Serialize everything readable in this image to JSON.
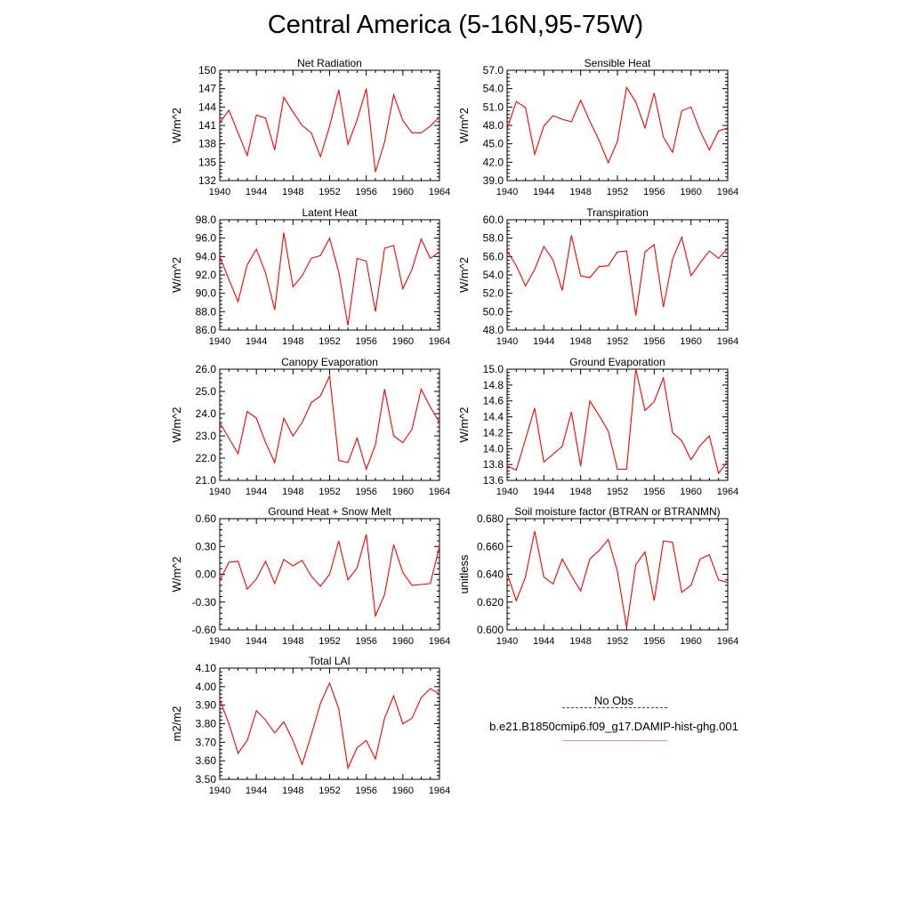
{
  "title": "Central America (5-16N,95-75W)",
  "legend": {
    "obs_label": "No Obs",
    "model_label": "b.e21.B1850cmip6.f09_g17.DAMIP-hist-ghg.001",
    "obs_color": "#3333cc",
    "model_color": "#ff0000"
  },
  "chart_data": [
    {
      "type": "line",
      "title": "Net Radiation",
      "ylabel": "W/m^2",
      "x": [
        1940,
        1941,
        1942,
        1943,
        1944,
        1945,
        1946,
        1947,
        1948,
        1949,
        1950,
        1951,
        1952,
        1953,
        1954,
        1955,
        1956,
        1957,
        1958,
        1959,
        1960,
        1961,
        1962,
        1963,
        1964
      ],
      "series": [
        {
          "values": [
            141.4,
            143.5,
            139.8,
            136.1,
            142.7,
            142.2,
            137.0,
            145.6,
            143.2,
            141.0,
            139.8,
            135.9,
            140.9,
            146.8,
            137.9,
            141.9,
            147.0,
            133.4,
            138.3,
            146.0,
            141.8,
            139.8,
            139.8,
            140.9,
            142.4
          ]
        }
      ],
      "yticks": [
        "132",
        "135",
        "138",
        "141",
        "144",
        "147",
        "150"
      ],
      "ylim": [
        132,
        150
      ],
      "xticks": [
        "1940",
        "1944",
        "1948",
        "1952",
        "1956",
        "1960",
        "1964"
      ],
      "xlim": [
        1940,
        1964
      ]
    },
    {
      "type": "line",
      "title": "Sensible Heat",
      "ylabel": "W/m^2",
      "x": [
        1940,
        1941,
        1942,
        1943,
        1944,
        1945,
        1946,
        1947,
        1948,
        1949,
        1950,
        1951,
        1952,
        1953,
        1954,
        1955,
        1956,
        1957,
        1958,
        1959,
        1960,
        1961,
        1962,
        1963,
        1964
      ],
      "series": [
        {
          "values": [
            47.4,
            51.9,
            50.9,
            43.3,
            47.9,
            49.6,
            49.0,
            48.6,
            52.1,
            48.7,
            45.6,
            41.9,
            45.4,
            54.2,
            51.8,
            47.6,
            53.3,
            46.1,
            43.6,
            50.4,
            51.0,
            47.1,
            44.0,
            47.1,
            47.6
          ]
        }
      ],
      "yticks": [
        "39.0",
        "42.0",
        "45.0",
        "48.0",
        "51.0",
        "54.0",
        "57.0"
      ],
      "ylim": [
        39,
        57
      ],
      "xticks": [
        "1940",
        "1944",
        "1948",
        "1952",
        "1956",
        "1960",
        "1964"
      ],
      "xlim": [
        1940,
        1964
      ]
    },
    {
      "type": "line",
      "title": "Latent Heat",
      "ylabel": "W/m^2",
      "x": [
        1940,
        1941,
        1942,
        1943,
        1944,
        1945,
        1946,
        1947,
        1948,
        1949,
        1950,
        1951,
        1952,
        1953,
        1954,
        1955,
        1956,
        1957,
        1958,
        1959,
        1960,
        1961,
        1962,
        1963,
        1964
      ],
      "series": [
        {
          "values": [
            94.0,
            91.5,
            89.1,
            93.1,
            94.8,
            92.2,
            88.2,
            96.6,
            90.7,
            91.9,
            93.8,
            94.1,
            96.0,
            92.3,
            86.5,
            93.8,
            93.5,
            88.0,
            94.9,
            95.2,
            90.5,
            92.6,
            95.9,
            93.8,
            94.5
          ]
        }
      ],
      "yticks": [
        "86.0",
        "88.0",
        "90.0",
        "92.0",
        "94.0",
        "96.0",
        "98.0"
      ],
      "ylim": [
        86,
        98
      ],
      "xticks": [
        "1940",
        "1944",
        "1948",
        "1952",
        "1956",
        "1960",
        "1964"
      ],
      "xlim": [
        1940,
        1964
      ]
    },
    {
      "type": "line",
      "title": "Transpiration",
      "ylabel": "W/m^2",
      "x": [
        1940,
        1941,
        1942,
        1943,
        1944,
        1945,
        1946,
        1947,
        1948,
        1949,
        1950,
        1951,
        1952,
        1953,
        1954,
        1955,
        1956,
        1957,
        1958,
        1959,
        1960,
        1961,
        1962,
        1963,
        1964
      ],
      "series": [
        {
          "values": [
            56.6,
            55.0,
            52.8,
            54.6,
            57.1,
            55.6,
            52.3,
            58.3,
            53.9,
            53.7,
            54.9,
            55.0,
            56.5,
            56.6,
            49.6,
            56.5,
            57.3,
            50.5,
            55.7,
            58.1,
            53.9,
            55.3,
            56.6,
            55.8,
            56.9
          ]
        }
      ],
      "yticks": [
        "48.0",
        "50.0",
        "52.0",
        "54.0",
        "56.0",
        "58.0",
        "60.0"
      ],
      "ylim": [
        48,
        60
      ],
      "xticks": [
        "1940",
        "1944",
        "1948",
        "1952",
        "1956",
        "1960",
        "1964"
      ],
      "xlim": [
        1940,
        1964
      ]
    },
    {
      "type": "line",
      "title": "Canopy Evaporation",
      "ylabel": "W/m^2",
      "x": [
        1940,
        1941,
        1942,
        1943,
        1944,
        1945,
        1946,
        1947,
        1948,
        1949,
        1950,
        1951,
        1952,
        1953,
        1954,
        1955,
        1956,
        1957,
        1958,
        1959,
        1960,
        1961,
        1962,
        1963,
        1964
      ],
      "series": [
        {
          "values": [
            23.6,
            22.9,
            22.2,
            24.1,
            23.8,
            22.7,
            21.8,
            23.8,
            23.0,
            23.6,
            24.5,
            24.8,
            25.7,
            21.9,
            21.8,
            22.9,
            21.5,
            22.6,
            25.1,
            23.0,
            22.7,
            23.3,
            25.1,
            24.3,
            23.6
          ]
        }
      ],
      "yticks": [
        "21.0",
        "22.0",
        "23.0",
        "24.0",
        "25.0",
        "26.0"
      ],
      "ylim": [
        21,
        26
      ],
      "xticks": [
        "1940",
        "1944",
        "1948",
        "1952",
        "1956",
        "1960",
        "1964"
      ],
      "xlim": [
        1940,
        1964
      ]
    },
    {
      "type": "line",
      "title": "Ground Evaporation",
      "ylabel": "W/m^2",
      "x": [
        1940,
        1941,
        1942,
        1943,
        1944,
        1945,
        1946,
        1947,
        1948,
        1949,
        1950,
        1951,
        1952,
        1953,
        1954,
        1955,
        1956,
        1957,
        1958,
        1959,
        1960,
        1961,
        1962,
        1963,
        1964
      ],
      "series": [
        {
          "values": [
            13.78,
            13.73,
            14.12,
            14.51,
            13.83,
            13.93,
            14.03,
            14.46,
            13.78,
            14.6,
            14.42,
            14.22,
            13.74,
            13.74,
            15.0,
            14.48,
            14.59,
            14.89,
            14.2,
            14.1,
            13.86,
            14.04,
            14.16,
            13.69,
            13.84
          ]
        }
      ],
      "yticks": [
        "13.6",
        "13.8",
        "14.0",
        "14.2",
        "14.4",
        "14.6",
        "14.8",
        "15.0"
      ],
      "ylim": [
        13.6,
        15.0
      ],
      "xticks": [
        "1940",
        "1944",
        "1948",
        "1952",
        "1956",
        "1960",
        "1964"
      ],
      "xlim": [
        1940,
        1964
      ]
    },
    {
      "type": "line",
      "title": "Ground Heat + Snow Melt",
      "ylabel": "W/m^2",
      "x": [
        1940,
        1941,
        1942,
        1943,
        1944,
        1945,
        1946,
        1947,
        1948,
        1949,
        1950,
        1951,
        1952,
        1953,
        1954,
        1955,
        1956,
        1957,
        1958,
        1959,
        1960,
        1961,
        1962,
        1963,
        1964
      ],
      "series": [
        {
          "values": [
            -0.07,
            0.13,
            0.14,
            -0.16,
            -0.05,
            0.14,
            -0.1,
            0.16,
            0.09,
            0.15,
            -0.02,
            -0.13,
            0.0,
            0.36,
            -0.06,
            0.07,
            0.43,
            -0.45,
            -0.22,
            0.32,
            0.02,
            -0.12,
            -0.11,
            -0.1,
            0.3
          ]
        }
      ],
      "yticks": [
        "-0.60",
        "-0.30",
        "0.00",
        "0.30",
        "0.60"
      ],
      "ylim": [
        -0.6,
        0.6
      ],
      "xticks": [
        "1940",
        "1944",
        "1948",
        "1952",
        "1956",
        "1960",
        "1964"
      ],
      "xlim": [
        1940,
        1964
      ]
    },
    {
      "type": "line",
      "title": "Soil moisture factor (BTRAN or BTRANMN)",
      "ylabel": "unitless",
      "x": [
        1940,
        1941,
        1942,
        1943,
        1944,
        1945,
        1946,
        1947,
        1948,
        1949,
        1950,
        1951,
        1952,
        1953,
        1954,
        1955,
        1956,
        1957,
        1958,
        1959,
        1960,
        1961,
        1962,
        1963,
        1964
      ],
      "series": [
        {
          "values": [
            0.641,
            0.621,
            0.638,
            0.671,
            0.638,
            0.633,
            0.651,
            0.639,
            0.628,
            0.651,
            0.657,
            0.665,
            0.642,
            0.602,
            0.647,
            0.656,
            0.621,
            0.664,
            0.663,
            0.627,
            0.632,
            0.651,
            0.654,
            0.636,
            0.634
          ]
        }
      ],
      "yticks": [
        "0.600",
        "0.620",
        "0.640",
        "0.660",
        "0.680"
      ],
      "ylim": [
        0.6,
        0.68
      ],
      "xticks": [
        "1940",
        "1944",
        "1948",
        "1952",
        "1956",
        "1960",
        "1964"
      ],
      "xlim": [
        1940,
        1964
      ]
    },
    {
      "type": "line",
      "title": "Total LAI",
      "ylabel": "m2/m2",
      "x": [
        1940,
        1941,
        1942,
        1943,
        1944,
        1945,
        1946,
        1947,
        1948,
        1949,
        1950,
        1951,
        1952,
        1953,
        1954,
        1955,
        1956,
        1957,
        1958,
        1959,
        1960,
        1961,
        1962,
        1963,
        1964
      ],
      "series": [
        {
          "values": [
            3.93,
            3.8,
            3.64,
            3.71,
            3.87,
            3.82,
            3.75,
            3.81,
            3.71,
            3.58,
            3.74,
            3.91,
            4.02,
            3.88,
            3.56,
            3.67,
            3.71,
            3.61,
            3.83,
            3.95,
            3.8,
            3.83,
            3.94,
            3.99,
            3.96
          ]
        }
      ],
      "yticks": [
        "3.50",
        "3.60",
        "3.70",
        "3.80",
        "3.90",
        "4.00",
        "4.10"
      ],
      "ylim": [
        3.5,
        4.1
      ],
      "xticks": [
        "1940",
        "1944",
        "1948",
        "1952",
        "1956",
        "1960",
        "1964"
      ],
      "xlim": [
        1940,
        1964
      ]
    }
  ]
}
